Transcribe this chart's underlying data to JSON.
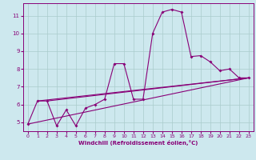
{
  "xlabel": "Windchill (Refroidissement éolien,°C)",
  "bg_color": "#cde8ee",
  "grid_color": "#aacccc",
  "line_color": "#880077",
  "xlim": [
    -0.5,
    23.5
  ],
  "ylim": [
    4.5,
    11.7
  ],
  "xticks": [
    0,
    1,
    2,
    3,
    4,
    5,
    6,
    7,
    8,
    9,
    10,
    11,
    12,
    13,
    14,
    15,
    16,
    17,
    18,
    19,
    20,
    21,
    22,
    23
  ],
  "yticks": [
    5,
    6,
    7,
    8,
    9,
    10,
    11
  ],
  "series1": [
    [
      0,
      4.9
    ],
    [
      1,
      6.2
    ],
    [
      2,
      6.2
    ],
    [
      3,
      4.8
    ],
    [
      4,
      5.7
    ],
    [
      5,
      4.8
    ],
    [
      6,
      5.8
    ],
    [
      7,
      6.0
    ],
    [
      8,
      6.3
    ],
    [
      9,
      8.3
    ],
    [
      10,
      8.3
    ],
    [
      11,
      6.3
    ],
    [
      12,
      6.3
    ],
    [
      13,
      10.0
    ],
    [
      14,
      11.2
    ],
    [
      15,
      11.35
    ],
    [
      16,
      11.2
    ],
    [
      17,
      8.7
    ],
    [
      18,
      8.75
    ],
    [
      19,
      8.4
    ],
    [
      20,
      7.9
    ],
    [
      21,
      8.0
    ],
    [
      22,
      7.5
    ],
    [
      23,
      7.5
    ]
  ],
  "series2": [
    [
      0,
      4.9
    ],
    [
      23,
      7.5
    ]
  ],
  "series3": [
    [
      1,
      6.2
    ],
    [
      23,
      7.5
    ]
  ],
  "series4": [
    [
      2,
      6.2
    ],
    [
      23,
      7.5
    ]
  ]
}
